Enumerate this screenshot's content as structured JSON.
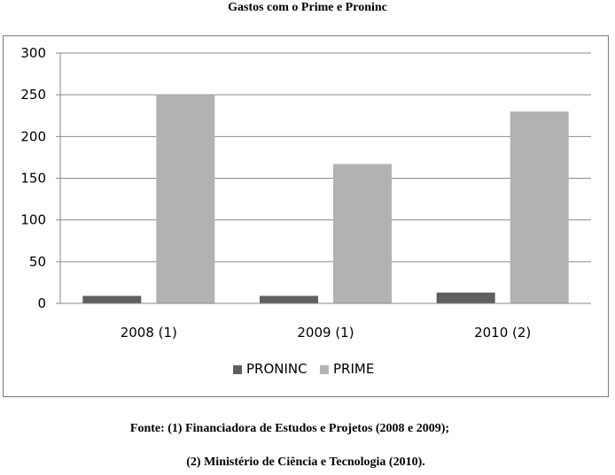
{
  "chart_data": {
    "type": "bar",
    "title": "Gastos com o Prime e Proninc",
    "categories": [
      "2008 (1)",
      "2009 (1)",
      "2010 (2)"
    ],
    "series": [
      {
        "name": "PRONINC",
        "values": [
          9,
          9,
          13
        ],
        "color": "#5f5f5f"
      },
      {
        "name": "PRIME",
        "values": [
          250,
          167,
          230
        ],
        "color": "#b2b2b2"
      }
    ],
    "ylim": [
      0,
      300
    ],
    "yticks": [
      0,
      50,
      100,
      150,
      200,
      250,
      300
    ],
    "grid": true,
    "legend": "bottom"
  },
  "source": {
    "line1": "Fonte: (1) Financiadora de Estudos e Projetos (2008 e 2009);",
    "line2": "(2) Ministério de Ciência e Tecnologia (2010)."
  }
}
